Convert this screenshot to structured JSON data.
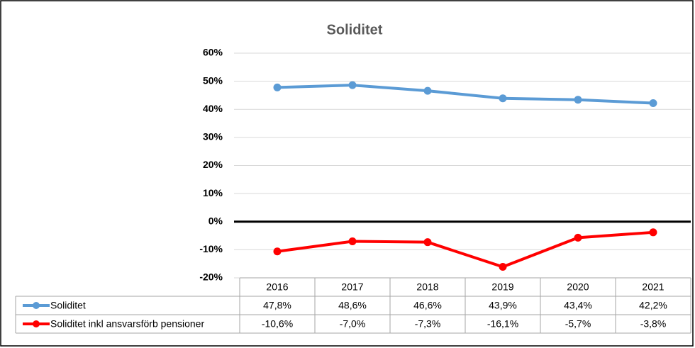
{
  "chart_data": {
    "type": "line",
    "title": "Soliditet",
    "categories": [
      "2016",
      "2017",
      "2018",
      "2019",
      "2020",
      "2021"
    ],
    "series": [
      {
        "name": "Soliditet",
        "color": "#5b9bd5",
        "values": [
          47.8,
          48.6,
          46.6,
          43.9,
          43.4,
          42.2
        ],
        "value_labels": [
          "47,8%",
          "48,6%",
          "46,6%",
          "43,9%",
          "43,4%",
          "42,2%"
        ]
      },
      {
        "name": "Soliditet inkl ansvarsförb pensioner",
        "color": "#ff0000",
        "values": [
          -10.6,
          -7.0,
          -7.3,
          -16.1,
          -5.7,
          -3.8
        ],
        "value_labels": [
          "-10,6%",
          "-7,0%",
          "-7,3%",
          "-16,1%",
          "-5,7%",
          "-3,8%"
        ]
      }
    ],
    "ylim": [
      -20,
      60
    ],
    "yticks": [
      {
        "value": -20,
        "label": "-20%"
      },
      {
        "value": -10,
        "label": "-10%"
      },
      {
        "value": 0,
        "label": "0%"
      },
      {
        "value": 10,
        "label": "10%"
      },
      {
        "value": 20,
        "label": "20%"
      },
      {
        "value": 30,
        "label": "30%"
      },
      {
        "value": 40,
        "label": "40%"
      },
      {
        "value": 50,
        "label": "50%"
      },
      {
        "value": 60,
        "label": "60%"
      }
    ],
    "grid": true
  }
}
